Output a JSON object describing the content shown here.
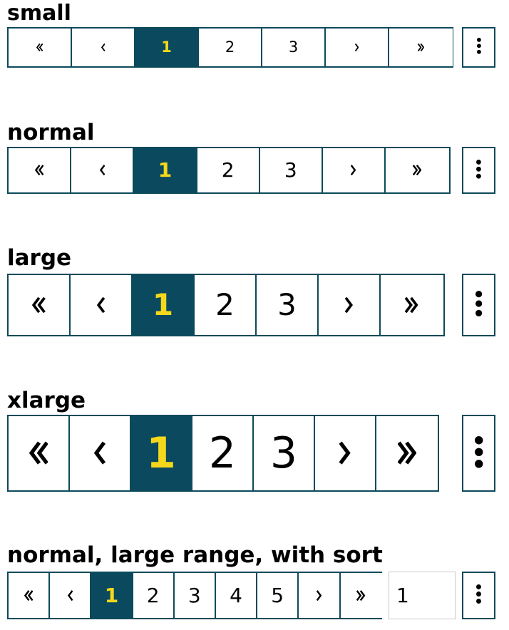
{
  "colors": {
    "border": "#0c4a5a",
    "active_bg": "#0b4a5e",
    "active_text": "#f5d81c",
    "text": "#000000",
    "sort_border": "#c8c8c8"
  },
  "sections": [
    {
      "title": "small",
      "buttons": [
        {
          "icon": "double-chevron-left-icon"
        },
        {
          "icon": "chevron-left-icon"
        },
        {
          "label": "1",
          "active": true
        },
        {
          "label": "2"
        },
        {
          "label": "3"
        },
        {
          "icon": "chevron-right-icon"
        },
        {
          "icon": "double-chevron-right-icon"
        }
      ],
      "more_icon": "vertical-ellipsis-icon"
    },
    {
      "title": "normal",
      "buttons": [
        {
          "icon": "double-chevron-left-icon"
        },
        {
          "icon": "chevron-left-icon"
        },
        {
          "label": "1",
          "active": true
        },
        {
          "label": "2"
        },
        {
          "label": "3"
        },
        {
          "icon": "chevron-right-icon"
        },
        {
          "icon": "double-chevron-right-icon"
        }
      ],
      "more_icon": "vertical-ellipsis-icon"
    },
    {
      "title": "large",
      "buttons": [
        {
          "icon": "double-chevron-left-icon"
        },
        {
          "icon": "chevron-left-icon"
        },
        {
          "label": "1",
          "active": true
        },
        {
          "label": "2"
        },
        {
          "label": "3"
        },
        {
          "icon": "chevron-right-icon"
        },
        {
          "icon": "double-chevron-right-icon"
        }
      ],
      "more_icon": "vertical-ellipsis-icon"
    },
    {
      "title": "xlarge",
      "buttons": [
        {
          "icon": "double-chevron-left-icon"
        },
        {
          "icon": "chevron-left-icon"
        },
        {
          "label": "1",
          "active": true
        },
        {
          "label": "2"
        },
        {
          "label": "3"
        },
        {
          "icon": "chevron-right-icon"
        },
        {
          "icon": "double-chevron-right-icon"
        }
      ],
      "more_icon": "vertical-ellipsis-icon"
    },
    {
      "title": "normal, large range, with sort",
      "buttons": [
        {
          "icon": "double-chevron-left-icon"
        },
        {
          "icon": "chevron-left-icon"
        },
        {
          "label": "1",
          "active": true
        },
        {
          "label": "2"
        },
        {
          "label": "3"
        },
        {
          "label": "4"
        },
        {
          "label": "5"
        },
        {
          "icon": "chevron-right-icon"
        },
        {
          "icon": "double-chevron-right-icon"
        }
      ],
      "sort_value": "1",
      "more_icon": "vertical-ellipsis-icon"
    }
  ]
}
